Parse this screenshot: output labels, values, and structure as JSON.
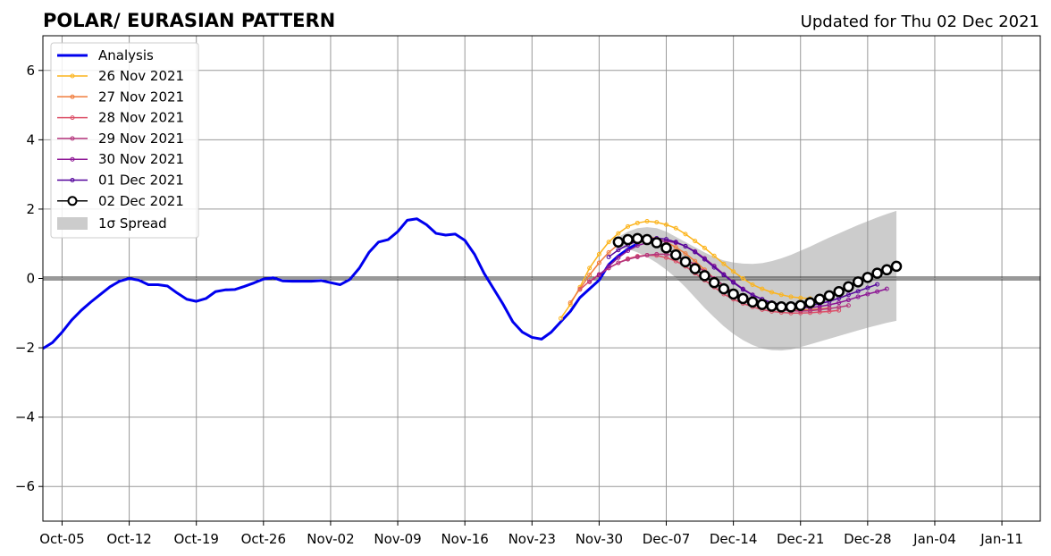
{
  "title": "POLAR/ EURASIAN  PATTERN",
  "updated": "Updated for Thu 02 Dec 2021",
  "colors": {
    "analysis": "#0000ee",
    "forecasts": [
      "#fcb41c",
      "#f07c3c",
      "#dc5068",
      "#b4347c",
      "#8c1494",
      "#54049c",
      "#000000"
    ],
    "spread": "#cccccc",
    "grid": "#999999"
  },
  "chart_data": {
    "type": "line",
    "title": "POLAR/ EURASIAN  PATTERN",
    "x_ticks": [
      "Oct-05",
      "Oct-12",
      "Oct-19",
      "Oct-26",
      "Nov-02",
      "Nov-09",
      "Nov-16",
      "Nov-23",
      "Nov-30",
      "Dec-07",
      "Dec-14",
      "Dec-21",
      "Dec-28",
      "Jan-04",
      "Jan-11"
    ],
    "y_ticks": [
      "−6",
      "−4",
      "−2",
      "0",
      "2",
      "4",
      "6"
    ],
    "xlim": [
      "2021-10-03",
      "2022-01-15"
    ],
    "ylim": [
      -7,
      7
    ],
    "grid": true,
    "legend_position": "top-left",
    "analysis": {
      "name": "Analysis",
      "start": "2021-10-03",
      "values": [
        -2.02,
        -1.85,
        -1.55,
        -1.2,
        -0.92,
        -0.68,
        -0.46,
        -0.24,
        -0.08,
        0.0,
        -0.05,
        -0.18,
        -0.18,
        -0.22,
        -0.42,
        -0.6,
        -0.66,
        -0.58,
        -0.38,
        -0.33,
        -0.32,
        -0.23,
        -0.13,
        -0.02,
        0.02,
        -0.07,
        -0.08,
        -0.08,
        -0.08,
        -0.06,
        -0.12,
        -0.18,
        -0.03,
        0.3,
        0.75,
        1.05,
        1.12,
        1.35,
        1.68,
        1.72,
        1.55,
        1.3,
        1.25,
        1.28,
        1.1,
        0.7,
        0.15,
        -0.3,
        -0.75,
        -1.25,
        -1.55,
        -1.7,
        -1.75,
        -1.55,
        -1.25,
        -0.95,
        -0.55,
        -0.3,
        -0.05,
        0.4,
        0.65,
        0.85,
        1.0
      ]
    },
    "forecasts": [
      {
        "name": "26 Nov 2021",
        "start": "2021-11-26",
        "values": [
          -1.15,
          -0.75,
          -0.25,
          0.3,
          0.7,
          1.05,
          1.3,
          1.5,
          1.6,
          1.65,
          1.62,
          1.55,
          1.45,
          1.28,
          1.08,
          0.88,
          0.65,
          0.42,
          0.2,
          0.0,
          -0.18,
          -0.3,
          -0.4,
          -0.47,
          -0.53,
          -0.56,
          -0.58
        ]
      },
      {
        "name": "27 Nov 2021",
        "start": "2021-11-27",
        "values": [
          -0.7,
          -0.3,
          0.1,
          0.45,
          0.75,
          0.98,
          1.12,
          1.18,
          1.2,
          1.15,
          1.05,
          0.9,
          0.72,
          0.5,
          0.25,
          0.0,
          -0.22,
          -0.42,
          -0.58,
          -0.7,
          -0.8,
          -0.87,
          -0.9,
          -0.92,
          -0.92,
          -0.9,
          -0.88,
          -0.85
        ]
      },
      {
        "name": "28 Nov 2021",
        "start": "2021-11-28",
        "values": [
          -0.32,
          -0.08,
          0.12,
          0.3,
          0.45,
          0.57,
          0.64,
          0.67,
          0.66,
          0.6,
          0.5,
          0.35,
          0.15,
          -0.05,
          -0.25,
          -0.45,
          -0.6,
          -0.72,
          -0.82,
          -0.9,
          -0.95,
          -0.98,
          -1.0,
          -1.0,
          -0.99,
          -0.97,
          -0.95,
          -0.92
        ]
      },
      {
        "name": "29 Nov 2021",
        "start": "2021-11-29",
        "values": [
          -0.1,
          0.1,
          0.3,
          0.45,
          0.55,
          0.62,
          0.67,
          0.7,
          0.7,
          0.65,
          0.55,
          0.4,
          0.2,
          0.0,
          -0.2,
          -0.4,
          -0.55,
          -0.68,
          -0.78,
          -0.85,
          -0.9,
          -0.93,
          -0.94,
          -0.93,
          -0.9,
          -0.87,
          -0.83,
          -0.78
        ]
      },
      {
        "name": "30 Nov 2021",
        "start": "2021-11-30",
        "values": [
          0.1,
          0.35,
          0.6,
          0.8,
          0.95,
          1.03,
          1.08,
          1.08,
          1.03,
          0.93,
          0.78,
          0.58,
          0.36,
          0.12,
          -0.1,
          -0.3,
          -0.47,
          -0.6,
          -0.7,
          -0.77,
          -0.82,
          -0.84,
          -0.84,
          -0.81,
          -0.76,
          -0.7,
          -0.62,
          -0.53,
          -0.45,
          -0.38,
          -0.3
        ]
      },
      {
        "name": "01 Dec 2021",
        "start": "2021-12-01",
        "values": [
          0.62,
          0.82,
          0.97,
          1.08,
          1.14,
          1.16,
          1.13,
          1.05,
          0.93,
          0.76,
          0.55,
          0.32,
          0.1,
          -0.12,
          -0.32,
          -0.48,
          -0.6,
          -0.7,
          -0.76,
          -0.8,
          -0.8,
          -0.78,
          -0.73,
          -0.66,
          -0.57,
          -0.47,
          -0.37,
          -0.27,
          -0.17
        ]
      },
      {
        "name": "02 Dec 2021",
        "start": "2021-12-02",
        "values": [
          1.05,
          1.12,
          1.15,
          1.12,
          1.03,
          0.88,
          0.68,
          0.48,
          0.28,
          0.08,
          -0.12,
          -0.3,
          -0.45,
          -0.58,
          -0.68,
          -0.75,
          -0.8,
          -0.82,
          -0.82,
          -0.78,
          -0.7,
          -0.6,
          -0.5,
          -0.38,
          -0.24,
          -0.1,
          0.03,
          0.15,
          0.25,
          0.35
        ]
      }
    ],
    "spread": {
      "name": "1σ Spread",
      "start": "2021-12-02",
      "upper": [
        1.2,
        1.35,
        1.45,
        1.48,
        1.45,
        1.35,
        1.2,
        1.05,
        0.9,
        0.75,
        0.62,
        0.52,
        0.46,
        0.43,
        0.42,
        0.44,
        0.5,
        0.58,
        0.68,
        0.8,
        0.92,
        1.05,
        1.18,
        1.3,
        1.42,
        1.54,
        1.65,
        1.76,
        1.86,
        1.95
      ],
      "lower": [
        0.9,
        0.85,
        0.75,
        0.62,
        0.45,
        0.25,
        0.02,
        -0.25,
        -0.55,
        -0.85,
        -1.12,
        -1.38,
        -1.6,
        -1.78,
        -1.92,
        -2.02,
        -2.07,
        -2.08,
        -2.05,
        -1.98,
        -1.9,
        -1.82,
        -1.74,
        -1.66,
        -1.58,
        -1.5,
        -1.42,
        -1.35,
        -1.28,
        -1.22
      ]
    }
  }
}
